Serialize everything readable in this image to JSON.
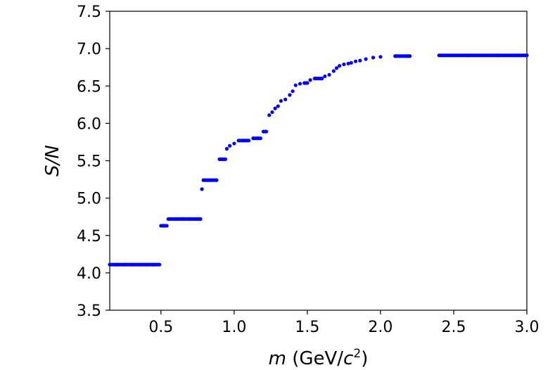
{
  "chart_data": {
    "type": "scatter",
    "xlabel_var": "m",
    "xlabel_unit_open": "(GeV/",
    "xlabel_unit_var": "c",
    "xlabel_unit_sup": "2",
    "xlabel_unit_close": ")",
    "ylabel": "S/N",
    "xlim": [
      0.15,
      3.0
    ],
    "ylim": [
      3.5,
      7.5
    ],
    "xticks": [
      0.5,
      1.0,
      1.5,
      2.0,
      2.5,
      3.0
    ],
    "xtick_labels": [
      "0.5",
      "1.0",
      "1.5",
      "2.0",
      "2.5",
      "3.0"
    ],
    "yticks": [
      3.5,
      4.0,
      4.5,
      5.0,
      5.5,
      6.0,
      6.5,
      7.0,
      7.5
    ],
    "ytick_labels": [
      "3.5",
      "4.0",
      "4.5",
      "5.0",
      "5.5",
      "6.0",
      "6.5",
      "7.0",
      "7.5"
    ],
    "grid": false,
    "marker_color": "#0000ff",
    "series": [
      {
        "x": [
          0.15,
          0.2,
          0.25,
          0.3,
          0.35,
          0.4,
          0.45,
          0.49,
          0.5,
          0.52,
          0.54,
          0.55,
          0.6,
          0.65,
          0.7,
          0.75,
          0.77,
          0.78,
          0.79,
          0.82,
          0.85,
          0.88,
          0.9,
          0.92,
          0.94,
          0.95,
          0.97,
          1.0,
          1.03,
          1.06,
          1.1,
          1.13,
          1.16,
          1.18,
          1.2,
          1.22,
          1.24,
          1.26,
          1.28,
          1.3,
          1.32,
          1.35,
          1.38,
          1.4,
          1.42,
          1.45,
          1.48,
          1.5,
          1.52,
          1.55,
          1.58,
          1.6,
          1.62,
          1.65,
          1.68,
          1.7,
          1.72,
          1.75,
          1.78,
          1.8,
          1.83,
          1.86,
          1.9,
          1.95,
          2.0,
          2.1,
          2.2,
          2.4,
          2.6,
          2.8,
          3.0
        ],
        "y": [
          4.11,
          4.11,
          4.11,
          4.11,
          4.11,
          4.11,
          4.11,
          4.11,
          4.63,
          4.63,
          4.63,
          4.72,
          4.72,
          4.72,
          4.72,
          4.72,
          4.72,
          5.12,
          5.24,
          5.24,
          5.24,
          5.24,
          5.52,
          5.52,
          5.52,
          5.66,
          5.7,
          5.73,
          5.77,
          5.77,
          5.77,
          5.8,
          5.8,
          5.8,
          5.89,
          5.89,
          6.11,
          6.15,
          6.2,
          6.23,
          6.3,
          6.32,
          6.38,
          6.43,
          6.51,
          6.53,
          6.54,
          6.54,
          6.58,
          6.6,
          6.6,
          6.6,
          6.63,
          6.65,
          6.7,
          6.74,
          6.77,
          6.79,
          6.8,
          6.81,
          6.83,
          6.84,
          6.86,
          6.88,
          6.89,
          6.9,
          6.9,
          6.91,
          6.91,
          6.91,
          6.91
        ]
      }
    ]
  }
}
